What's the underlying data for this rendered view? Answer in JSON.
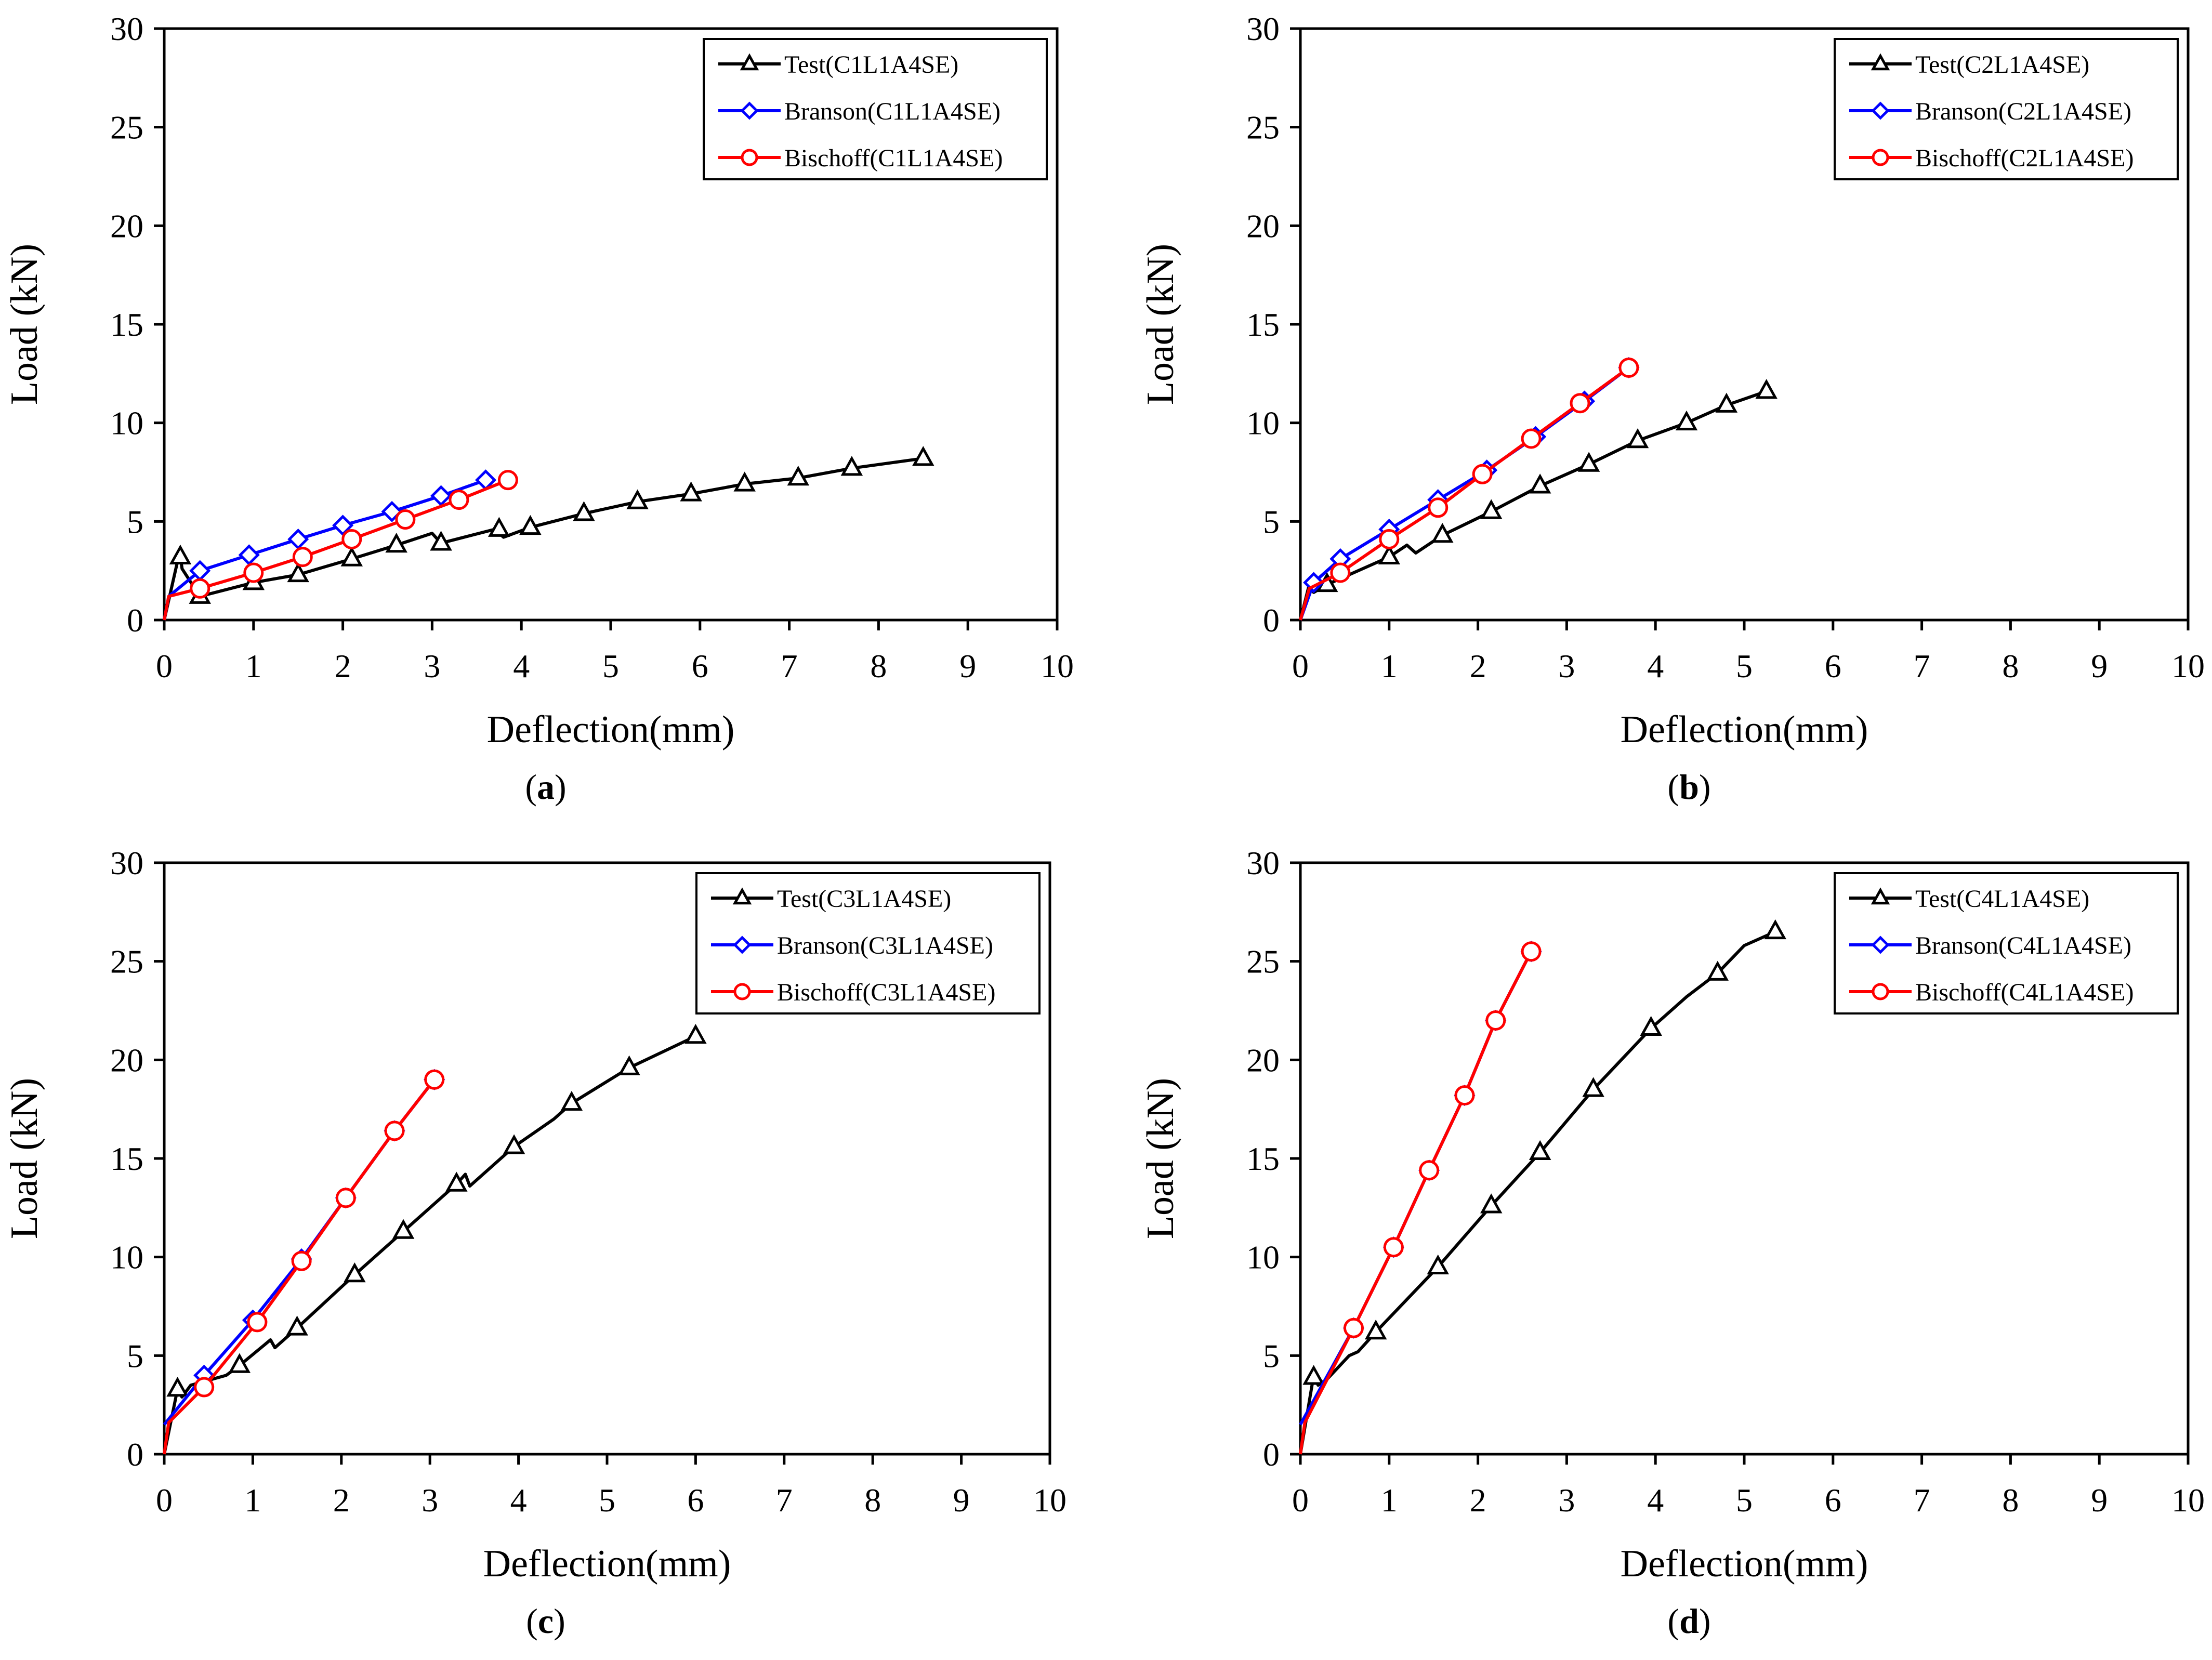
{
  "colors": {
    "test": "#000000",
    "branson": "#0000ff",
    "bischoff": "#ff0000"
  },
  "panels": [
    {
      "caption_letter": "a"
    },
    {
      "caption_letter": "b"
    },
    {
      "caption_letter": "c"
    },
    {
      "caption_letter": "d"
    }
  ],
  "chart_data": [
    {
      "type": "line",
      "xlabel": "Deflection(mm)",
      "ylabel": "Load  (kN)",
      "xlim": [
        0,
        10
      ],
      "ylim": [
        0,
        30
      ],
      "xticks": [
        "0",
        "1",
        "2",
        "3",
        "4",
        "5",
        "6",
        "7",
        "8",
        "9",
        "10"
      ],
      "yticks": [
        "0",
        "5",
        "10",
        "15",
        "20",
        "25",
        "30"
      ],
      "grid": false,
      "legend": "top-right",
      "series": [
        {
          "name": "Test(C1L1A4SE)",
          "marker": "triangle",
          "color": "#000000",
          "x": [
            0,
            0.15,
            0.18,
            0.2,
            0.4,
            1.0,
            1.5,
            2.1,
            2.6,
            3.0,
            3.1,
            3.7,
            3.8,
            4.1,
            4.7,
            5.3,
            5.9,
            6.5,
            7.1,
            7.7,
            8.5
          ],
          "y": [
            0,
            3.0,
            3.2,
            2.6,
            1.2,
            1.9,
            2.3,
            3.1,
            3.8,
            4.4,
            3.9,
            4.6,
            4.2,
            4.7,
            5.4,
            6.0,
            6.4,
            6.9,
            7.2,
            7.7,
            8.2
          ],
          "markers_x": [
            0.18,
            0.4,
            1.0,
            1.5,
            2.1,
            2.6,
            3.1,
            3.75,
            4.1,
            4.7,
            5.3,
            5.9,
            6.5,
            7.1,
            7.7,
            8.5
          ],
          "markers_y": [
            3.2,
            1.2,
            1.9,
            2.3,
            3.1,
            3.8,
            3.9,
            4.6,
            4.7,
            5.4,
            6.0,
            6.4,
            6.9,
            7.2,
            7.7,
            8.2
          ]
        },
        {
          "name": "Branson(C1L1A4SE)",
          "marker": "diamond",
          "color": "#0000ff",
          "x": [
            0,
            0.05,
            0.4,
            0.95,
            1.5,
            2.0,
            2.55,
            3.1,
            3.6
          ],
          "y": [
            0,
            1.2,
            2.5,
            3.3,
            4.1,
            4.8,
            5.5,
            6.3,
            7.1
          ],
          "markers_x": [
            0.4,
            0.95,
            1.5,
            2.0,
            2.55,
            3.1,
            3.6
          ],
          "markers_y": [
            2.5,
            3.3,
            4.1,
            4.8,
            5.5,
            6.3,
            7.1
          ]
        },
        {
          "name": "Bischoff(C1L1A4SE)",
          "marker": "circle",
          "color": "#ff0000",
          "x": [
            0,
            0.05,
            0.4,
            1.0,
            1.55,
            2.1,
            2.7,
            3.3,
            3.85
          ],
          "y": [
            0,
            1.2,
            1.6,
            2.4,
            3.2,
            4.1,
            5.1,
            6.1,
            7.1
          ],
          "markers_x": [
            0.4,
            1.0,
            1.55,
            2.1,
            2.7,
            3.3,
            3.85
          ],
          "markers_y": [
            1.6,
            2.4,
            3.2,
            4.1,
            5.1,
            6.1,
            7.1
          ]
        }
      ]
    },
    {
      "type": "line",
      "xlabel": "Deflection(mm)",
      "ylabel": "Load  (kN)",
      "xlim": [
        0,
        10
      ],
      "ylim": [
        0,
        30
      ],
      "xticks": [
        "0",
        "1",
        "2",
        "3",
        "4",
        "5",
        "6",
        "7",
        "8",
        "9",
        "10"
      ],
      "yticks": [
        "0",
        "5",
        "10",
        "15",
        "20",
        "25",
        "30"
      ],
      "grid": false,
      "legend": "top-right",
      "series": [
        {
          "name": "Test(C2L1A4SE)",
          "marker": "triangle",
          "color": "#000000",
          "x": [
            0,
            0.1,
            0.15,
            0.3,
            1.0,
            1.2,
            1.3,
            1.6,
            2.15,
            2.7,
            3.25,
            3.8,
            4.35,
            4.8,
            5.25
          ],
          "y": [
            0,
            1.8,
            1.4,
            1.8,
            3.2,
            3.8,
            3.4,
            4.3,
            5.5,
            6.8,
            7.9,
            9.1,
            10.0,
            10.9,
            11.6
          ],
          "markers_x": [
            0.3,
            1.0,
            1.6,
            2.15,
            2.7,
            3.25,
            3.8,
            4.35,
            4.8,
            5.25
          ],
          "markers_y": [
            1.8,
            3.2,
            4.3,
            5.5,
            6.8,
            7.9,
            9.1,
            10.0,
            10.9,
            11.6
          ]
        },
        {
          "name": "Branson(C2L1A4SE)",
          "marker": "diamond",
          "color": "#0000ff",
          "x": [
            0,
            0.15,
            0.45,
            1.0,
            1.55,
            2.1,
            2.65,
            3.2,
            3.7
          ],
          "y": [
            0,
            1.9,
            3.1,
            4.6,
            6.1,
            7.6,
            9.3,
            11.1,
            12.8
          ],
          "markers_x": [
            0.15,
            0.45,
            1.0,
            1.55,
            2.1,
            2.65,
            3.2,
            3.7
          ],
          "markers_y": [
            1.9,
            3.1,
            4.6,
            6.1,
            7.6,
            9.3,
            11.1,
            12.8
          ]
        },
        {
          "name": "Bischoff(C2L1A4SE)",
          "marker": "circle",
          "color": "#ff0000",
          "x": [
            0,
            0.1,
            0.45,
            1.0,
            1.55,
            2.05,
            2.6,
            3.15,
            3.7
          ],
          "y": [
            0,
            1.6,
            2.4,
            4.1,
            5.7,
            7.4,
            9.2,
            11.0,
            12.8
          ],
          "markers_x": [
            0.45,
            1.0,
            1.55,
            2.05,
            2.6,
            3.15,
            3.7
          ],
          "markers_y": [
            2.4,
            4.1,
            5.7,
            7.4,
            9.2,
            11.0,
            12.8
          ]
        }
      ]
    },
    {
      "type": "line",
      "xlabel": "Deflection(mm)",
      "ylabel": "Load (kN)",
      "xlim": [
        0,
        10
      ],
      "ylim": [
        0,
        30
      ],
      "xticks": [
        "0",
        "1",
        "2",
        "3",
        "4",
        "5",
        "6",
        "7",
        "8",
        "9",
        "10"
      ],
      "yticks": [
        "0",
        "5",
        "10",
        "15",
        "20",
        "25",
        "30"
      ],
      "grid": false,
      "legend": "top-right",
      "series": [
        {
          "name": "Test(C3L1A4SE)",
          "marker": "triangle",
          "color": "#000000",
          "x": [
            0,
            0.15,
            0.2,
            0.3,
            0.7,
            0.85,
            1.2,
            1.25,
            1.5,
            2.15,
            2.7,
            3.3,
            3.4,
            3.45,
            3.95,
            4.4,
            4.6,
            5.25,
            6.0
          ],
          "y": [
            0,
            3.3,
            2.9,
            3.5,
            4.0,
            4.5,
            5.8,
            5.4,
            6.4,
            9.1,
            11.3,
            13.7,
            14.2,
            13.6,
            15.6,
            17.0,
            17.8,
            19.6,
            21.2
          ],
          "markers_x": [
            0.15,
            0.85,
            1.5,
            2.15,
            2.7,
            3.3,
            3.95,
            4.6,
            5.25,
            6.0
          ],
          "markers_y": [
            3.3,
            4.5,
            6.4,
            9.1,
            11.3,
            13.7,
            15.6,
            17.8,
            19.6,
            21.2
          ]
        },
        {
          "name": "Branson(C3L1A4SE)",
          "marker": "diamond",
          "color": "#0000ff",
          "x": [
            0,
            0.45,
            1.0,
            1.55,
            2.05,
            2.6,
            3.05
          ],
          "y": [
            1.5,
            4.0,
            6.8,
            9.9,
            13.0,
            16.4,
            19.0
          ],
          "markers_x": [
            0.45,
            1.0,
            1.55,
            2.05,
            2.6,
            3.05
          ],
          "markers_y": [
            4.0,
            6.8,
            9.9,
            13.0,
            16.4,
            19.0
          ]
        },
        {
          "name": "Bischoff(C3L1A4SE)",
          "marker": "circle",
          "color": "#ff0000",
          "x": [
            0,
            0.05,
            0.45,
            1.05,
            1.55,
            2.05,
            2.6,
            3.05
          ],
          "y": [
            0,
            1.6,
            3.4,
            6.7,
            9.8,
            13.0,
            16.4,
            19.0
          ],
          "markers_x": [
            0.45,
            1.05,
            1.55,
            2.05,
            2.6,
            3.05
          ],
          "markers_y": [
            3.4,
            6.7,
            9.8,
            13.0,
            16.4,
            19.0
          ]
        }
      ]
    },
    {
      "type": "line",
      "xlabel": "Deflection(mm)",
      "ylabel": "Load (kN)",
      "xlim": [
        0,
        10
      ],
      "ylim": [
        0,
        30
      ],
      "xticks": [
        "0",
        "1",
        "2",
        "3",
        "4",
        "5",
        "6",
        "7",
        "8",
        "9",
        "10"
      ],
      "yticks": [
        "0",
        "5",
        "10",
        "15",
        "20",
        "25",
        "30"
      ],
      "grid": false,
      "legend": "top-right",
      "series": [
        {
          "name": "Test(C4L1A4SE)",
          "marker": "triangle",
          "color": "#000000",
          "x": [
            0,
            0.15,
            0.2,
            0.3,
            0.55,
            0.65,
            0.85,
            1.55,
            2.15,
            2.7,
            3.3,
            3.95,
            4.35,
            4.7,
            5.0,
            5.35
          ],
          "y": [
            0,
            4.0,
            3.5,
            3.8,
            5.0,
            5.2,
            6.2,
            9.5,
            12.6,
            15.3,
            18.5,
            21.6,
            23.2,
            24.4,
            25.8,
            26.5
          ],
          "markers_x": [
            0.15,
            0.85,
            1.55,
            2.15,
            2.7,
            3.3,
            3.95,
            4.7,
            5.35
          ],
          "markers_y": [
            3.9,
            6.2,
            9.5,
            12.6,
            15.3,
            18.5,
            21.6,
            24.4,
            26.5
          ]
        },
        {
          "name": "Branson(C4L1A4SE)",
          "marker": "diamond",
          "color": "#0000ff",
          "x": [
            0,
            0.6,
            1.05,
            1.45,
            1.85,
            2.2,
            2.6
          ],
          "y": [
            1.5,
            6.4,
            10.5,
            14.4,
            18.2,
            22.0,
            25.5
          ],
          "markers_x": [
            0.6,
            1.05,
            1.45,
            1.85,
            2.2,
            2.6
          ],
          "markers_y": [
            6.4,
            10.5,
            14.4,
            18.2,
            22.0,
            25.5
          ]
        },
        {
          "name": "Bischoff(C4L1A4SE)",
          "marker": "circle",
          "color": "#ff0000",
          "x": [
            0,
            0.05,
            0.6,
            1.05,
            1.45,
            1.85,
            2.2,
            2.6
          ],
          "y": [
            0,
            1.6,
            6.4,
            10.5,
            14.4,
            18.2,
            22.0,
            25.5
          ],
          "markers_x": [
            0.6,
            1.05,
            1.45,
            1.85,
            2.2,
            2.6
          ],
          "markers_y": [
            6.4,
            10.5,
            14.4,
            18.2,
            22.0,
            25.5
          ]
        }
      ]
    }
  ]
}
